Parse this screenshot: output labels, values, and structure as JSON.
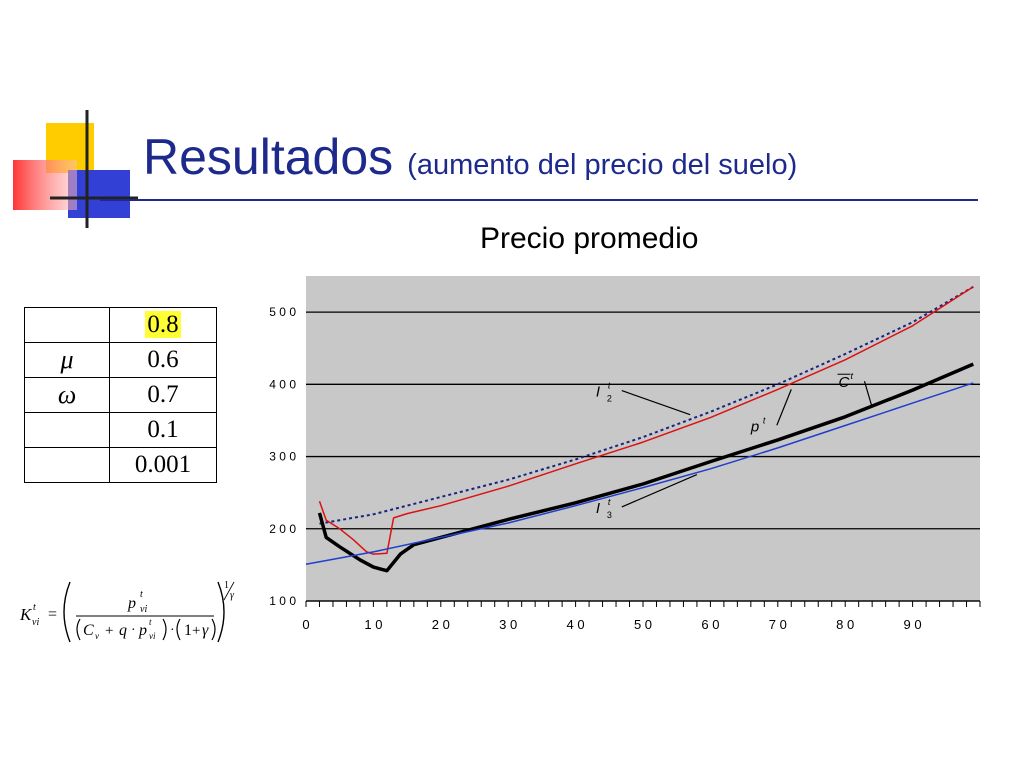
{
  "slide": {
    "title": "Resultados",
    "subtitle": "(aumento del precio del suelo)",
    "chart_heading": "Precio promedio"
  },
  "params": {
    "rows": [
      {
        "symbol": "",
        "value": "0.8",
        "highlight": true
      },
      {
        "symbol": "μ",
        "value": "0.6",
        "highlight": false
      },
      {
        "symbol": "ω",
        "value": "0.7",
        "highlight": false
      },
      {
        "symbol": "",
        "value": "0.1",
        "highlight": false
      },
      {
        "symbol": "",
        "value": "0.001",
        "highlight": false
      }
    ],
    "highlight_color": "#ffff33"
  },
  "formula": {
    "lhs": "K",
    "lhs_sup": "t",
    "lhs_sub": "vi",
    "numerator": "p",
    "numerator_sup": "t",
    "numerator_sub": "vi",
    "c": "C",
    "c_sub": "v",
    "plus": "+",
    "q": "q",
    "dot": "·",
    "p": "p",
    "p_sup": "t",
    "p_sub": "vi",
    "paren_one": "1",
    "gamma": "γ",
    "exp_num": "1",
    "exp_den": "γ",
    "equals": "="
  },
  "chart_data": {
    "type": "line",
    "xlim": [
      0,
      100
    ],
    "ylim": [
      100,
      550
    ],
    "x_ticks": [
      0,
      10,
      20,
      30,
      40,
      50,
      60,
      70,
      80,
      90
    ],
    "y_ticks": [
      100,
      200,
      300,
      400,
      500
    ],
    "y_tick_labels": [
      "1 0 0",
      "2 0 0",
      "3 0 0",
      "4 0 0",
      "5 0 0"
    ],
    "x_tick_labels": [
      "0",
      "1 0",
      "2 0",
      "3 0",
      "4 0",
      "5 0",
      "6 0",
      "7 0",
      "8 0",
      "9 0"
    ],
    "xlabel": "",
    "ylabel": "",
    "grid": "horizontal",
    "plot_background": "#c8c8c8",
    "series": [
      {
        "name": "I_2^t",
        "color": "#1a237e",
        "style": "dotted",
        "points": [
          [
            2,
            207
          ],
          [
            10,
            220
          ],
          [
            20,
            244
          ],
          [
            30,
            268
          ],
          [
            40,
            296
          ],
          [
            50,
            327
          ],
          [
            60,
            362
          ],
          [
            70,
            400
          ],
          [
            80,
            442
          ],
          [
            90,
            486
          ],
          [
            99,
            535
          ]
        ]
      },
      {
        "name": "p^t",
        "color": "#dd1111",
        "style": "solid",
        "points": [
          [
            2,
            238
          ],
          [
            3,
            212
          ],
          [
            5,
            200
          ],
          [
            7,
            185
          ],
          [
            9,
            168
          ],
          [
            10,
            165
          ],
          [
            12,
            166
          ],
          [
            13,
            215
          ],
          [
            15,
            221
          ],
          [
            20,
            232
          ],
          [
            30,
            259
          ],
          [
            40,
            290
          ],
          [
            50,
            320
          ],
          [
            60,
            354
          ],
          [
            70,
            393
          ],
          [
            80,
            434
          ],
          [
            90,
            481
          ],
          [
            99,
            535
          ]
        ]
      },
      {
        "name": "C^t",
        "color": "#000000",
        "style": "thick",
        "points": [
          [
            2,
            222
          ],
          [
            3,
            188
          ],
          [
            5,
            175
          ],
          [
            8,
            157
          ],
          [
            10,
            147
          ],
          [
            12,
            142
          ],
          [
            14,
            165
          ],
          [
            16,
            178
          ],
          [
            20,
            188
          ],
          [
            30,
            213
          ],
          [
            40,
            236
          ],
          [
            50,
            262
          ],
          [
            60,
            293
          ],
          [
            70,
            323
          ],
          [
            80,
            355
          ],
          [
            90,
            392
          ],
          [
            99,
            428
          ]
        ]
      },
      {
        "name": "I_3^t",
        "color": "#1f3fcc",
        "style": "solid",
        "points": [
          [
            0,
            151
          ],
          [
            10,
            168
          ],
          [
            20,
            188
          ],
          [
            30,
            208
          ],
          [
            40,
            232
          ],
          [
            50,
            257
          ],
          [
            60,
            283
          ],
          [
            70,
            312
          ],
          [
            80,
            343
          ],
          [
            90,
            374
          ],
          [
            99,
            402
          ]
        ]
      }
    ],
    "annotations": [
      {
        "id": "I2",
        "base": "I",
        "sup": "t",
        "sub": "2",
        "x": 43,
        "y": 383,
        "to": [
          57,
          358
        ]
      },
      {
        "id": "p",
        "base": "p",
        "sup": "t",
        "sub": "",
        "x": 66,
        "y": 335,
        "to": [
          72,
          393
        ]
      },
      {
        "id": "C",
        "base": "C",
        "sup": "t",
        "sub": "",
        "x": 79,
        "y": 396,
        "overline": true,
        "to": [
          84,
          368
        ]
      },
      {
        "id": "I3",
        "base": "I",
        "sup": "t",
        "sub": "3",
        "x": 43,
        "y": 222,
        "to": [
          58,
          275
        ]
      }
    ]
  }
}
